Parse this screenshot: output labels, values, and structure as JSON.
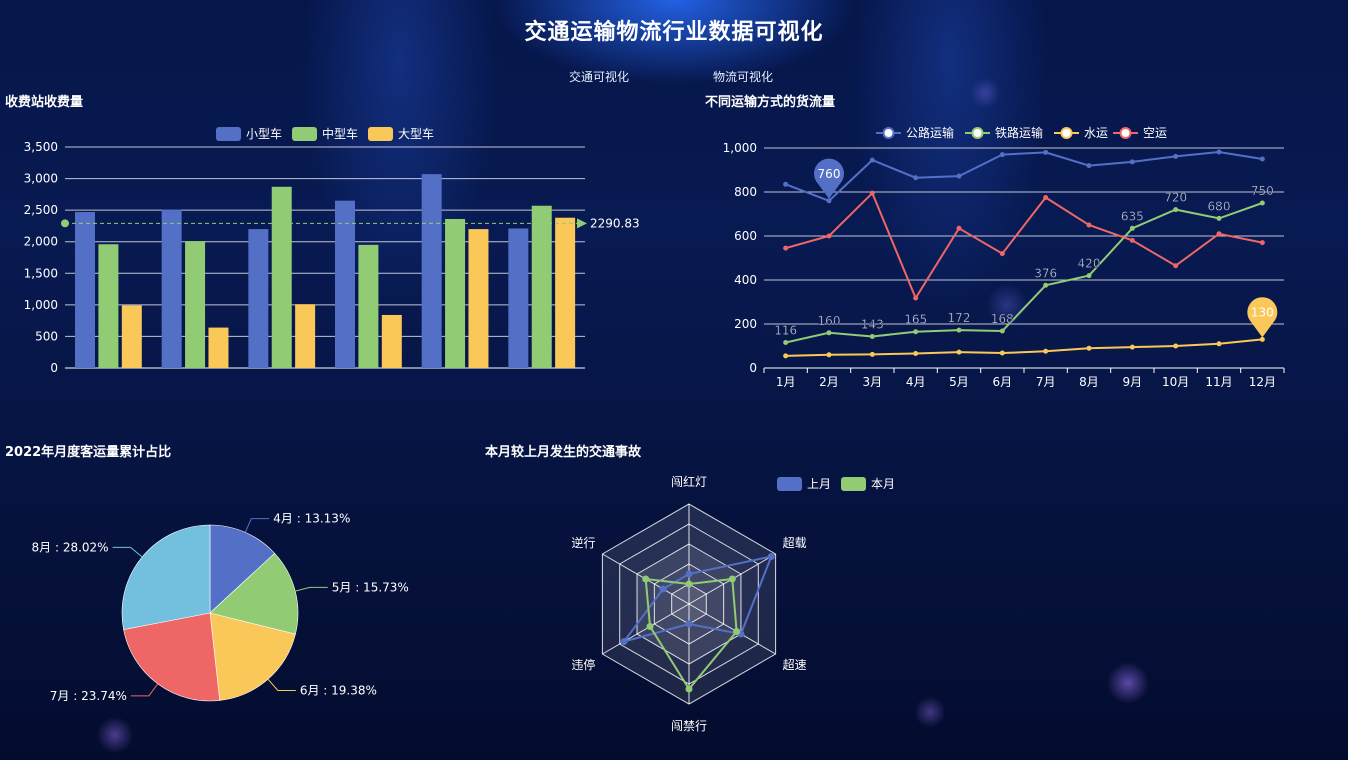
{
  "page": {
    "title": "交通运输物流行业数据可视化",
    "nav": [
      "交通可视化",
      "物流可视化"
    ]
  },
  "colors": {
    "blue": "#5470c6",
    "green": "#91cc75",
    "yellow": "#fac858",
    "red": "#ee6666",
    "cyan": "#73c0de"
  },
  "panels": {
    "toll": "收费站收费量",
    "freight": "不同运输方式的货流量",
    "passenger": "2022年月度客运量累计占比",
    "accidents": "本月较上月发生的交通事故"
  },
  "chart_data": [
    {
      "id": "toll",
      "type": "bar",
      "title": "收费站收费量",
      "legend_position": "top-center",
      "categories": [
        "",
        "",
        "",
        "",
        "",
        ""
      ],
      "series": [
        {
          "name": "小型车",
          "color": "#5470c6",
          "values": [
            2470,
            2510,
            2200,
            2650,
            3070,
            2210
          ]
        },
        {
          "name": "中型车",
          "color": "#91cc75",
          "values": [
            1960,
            2010,
            2870,
            1950,
            2360,
            2570
          ]
        },
        {
          "name": "大型车",
          "color": "#fac858",
          "values": [
            990,
            640,
            1010,
            840,
            2200,
            2380
          ]
        }
      ],
      "average_line": {
        "value": 2290.83,
        "label": "2290.83"
      },
      "ylim": [
        0,
        3500
      ],
      "yticks": [
        "3,500",
        "3,000",
        "2,500",
        "2,000",
        "1,500",
        "1,000",
        "500",
        "0"
      ],
      "grid": true
    },
    {
      "id": "freight",
      "type": "line",
      "title": "不同运输方式的货流量",
      "legend_position": "top-center",
      "categories": [
        "1月",
        "2月",
        "3月",
        "4月",
        "5月",
        "6月",
        "7月",
        "8月",
        "9月",
        "10月",
        "11月",
        "12月"
      ],
      "series": [
        {
          "name": "公路运输",
          "color": "#5470c6",
          "values": [
            835,
            760,
            945,
            865,
            872,
            970,
            980,
            920,
            937,
            962,
            982,
            950
          ],
          "pin": {
            "index": 1,
            "label": "760"
          }
        },
        {
          "name": "铁路运输",
          "color": "#91cc75",
          "values": [
            116,
            160,
            143,
            165,
            172,
            168,
            376,
            420,
            635,
            720,
            680,
            750
          ],
          "labels": [
            "116",
            "160",
            "143",
            "165",
            "172",
            "168",
            "376",
            "420",
            "635",
            "720",
            "680",
            "750"
          ]
        },
        {
          "name": "水运",
          "color": "#fac858",
          "values": [
            55,
            60,
            62,
            66,
            72,
            68,
            76,
            90,
            95,
            100,
            110,
            130
          ],
          "pin": {
            "index": 11,
            "label": "130"
          }
        },
        {
          "name": "空运",
          "color": "#ee6666",
          "values": [
            545,
            600,
            795,
            318,
            635,
            520,
            775,
            650,
            580,
            465,
            610,
            570
          ]
        }
      ],
      "ylim": [
        0,
        1000
      ],
      "yticks": [
        "1,000",
        "800",
        "600",
        "400",
        "200",
        "0"
      ],
      "grid": true
    },
    {
      "id": "passenger",
      "type": "pie",
      "title": "2022年月度客运量累计占比",
      "slices": [
        {
          "label": "4月 : 13.13%",
          "value": 13.13,
          "color": "#5470c6"
        },
        {
          "label": "5月 : 15.73%",
          "value": 15.73,
          "color": "#91cc75"
        },
        {
          "label": "6月 : 19.38%",
          "value": 19.38,
          "color": "#fac858"
        },
        {
          "label": "7月 : 23.74%",
          "value": 23.74,
          "color": "#ee6666"
        },
        {
          "label": "8月 : 28.02%",
          "value": 28.02,
          "color": "#73c0de"
        }
      ]
    },
    {
      "id": "accidents",
      "type": "radar",
      "title": "本月较上月发生的交通事故",
      "legend_position": "top-right",
      "max": 100,
      "indicators": [
        "闯红灯",
        "超载",
        "超速",
        "闯禁行",
        "违停",
        "逆行"
      ],
      "series": [
        {
          "name": "上月",
          "color": "#5470c6",
          "values": [
            30,
            95,
            60,
            20,
            75,
            30
          ]
        },
        {
          "name": "本月",
          "color": "#91cc75",
          "values": [
            20,
            50,
            55,
            85,
            45,
            50
          ]
        }
      ]
    }
  ]
}
